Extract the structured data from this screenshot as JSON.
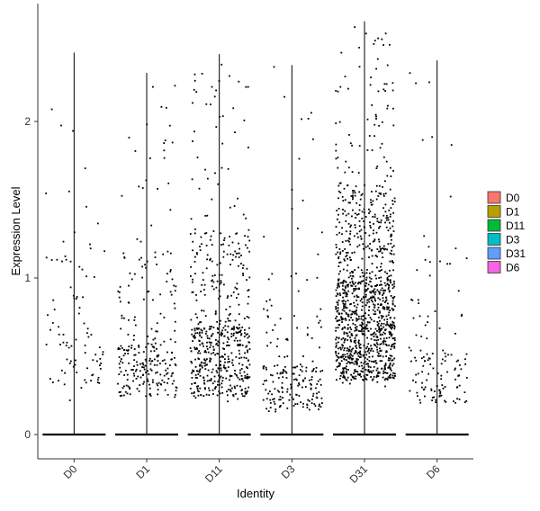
{
  "chart_data": {
    "type": "scatter",
    "subtype": "violin-jitter",
    "xlabel": "Identity",
    "ylabel": "Expression Level",
    "categories": [
      "D0",
      "D1",
      "D11",
      "D3",
      "D31",
      "D6"
    ],
    "ylim": [
      -0.15,
      2.65
    ],
    "yticks": [
      0,
      1,
      2
    ],
    "legend": {
      "placement": "right",
      "entries": [
        {
          "label": "D0",
          "color": "#F8766D"
        },
        {
          "label": "D1",
          "color": "#B79F00"
        },
        {
          "label": "D11",
          "color": "#00BA38"
        },
        {
          "label": "D3",
          "color": "#00BFC4"
        },
        {
          "label": "D31",
          "color": "#619CFF"
        },
        {
          "label": "D6",
          "color": "#F564E3"
        }
      ]
    },
    "series": [
      {
        "category": "D0",
        "max": 2.44,
        "approx_nonzero_points": 90,
        "low": 0.15,
        "dense_range": [
          0.3,
          0.7
        ]
      },
      {
        "category": "D1",
        "max": 2.31,
        "approx_nonzero_points": 260,
        "low": 0.22,
        "dense_range": [
          0.25,
          0.6
        ]
      },
      {
        "category": "D11",
        "max": 2.43,
        "approx_nonzero_points": 560,
        "low": 0.2,
        "dense_range": [
          0.25,
          0.7
        ]
      },
      {
        "category": "D3",
        "max": 2.36,
        "approx_nonzero_points": 200,
        "low": 0.12,
        "dense_range": [
          0.15,
          0.45
        ]
      },
      {
        "category": "D31",
        "max": 2.64,
        "approx_nonzero_points": 1150,
        "low": 0.3,
        "dense_range": [
          0.35,
          1.0
        ]
      },
      {
        "category": "D6",
        "max": 2.39,
        "approx_nonzero_points": 130,
        "low": 0.17,
        "dense_range": [
          0.2,
          0.55
        ]
      }
    ],
    "zero_baseline": true,
    "grid": false,
    "point_color": "#000000"
  }
}
